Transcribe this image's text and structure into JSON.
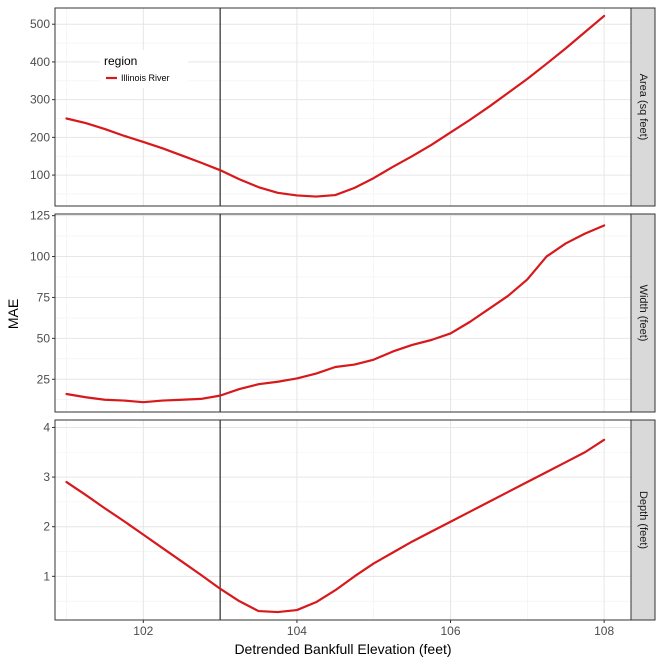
{
  "chart_data": {
    "type": "line",
    "facet_layout": "vertical",
    "ylabel": "MAE",
    "xlabel": "Detrended Bankfull Elevation (feet)",
    "xlim": [
      100.85,
      108.35
    ],
    "x_ticks": [
      102,
      104,
      106,
      108
    ],
    "vline_x": 103,
    "line_color": "#d7191c",
    "grid": true,
    "legend": {
      "title": "region",
      "placement": "top-left inside first panel",
      "entries": [
        {
          "label": "Illinois River",
          "color": "#d7191c"
        }
      ]
    },
    "panels": [
      {
        "strip": "Area (sq feet)",
        "ylim": [
          18,
          543
        ],
        "y_ticks": [
          100,
          200,
          300,
          400,
          500
        ],
        "series": [
          {
            "name": "Illinois River",
            "x": [
              101,
              101.25,
              101.5,
              101.75,
              102,
              102.25,
              102.5,
              102.75,
              103,
              103.25,
              103.5,
              103.75,
              104,
              104.25,
              104.5,
              104.75,
              105,
              105.25,
              105.5,
              105.75,
              106,
              106.25,
              106.5,
              106.75,
              107,
              107.25,
              107.5,
              107.75,
              108
            ],
            "y": [
              250,
              238,
              222,
              204,
              188,
              171,
              152,
              133,
              113,
              89,
              68,
              53,
              46,
              43,
              47,
              66,
              92,
              122,
              150,
              180,
              213,
              246,
              281,
              318,
              355,
              395,
              436,
              479,
              522
            ]
          }
        ]
      },
      {
        "strip": "Width (feet)",
        "ylim": [
          5,
          126
        ],
        "y_ticks": [
          25,
          50,
          75,
          100,
          125
        ],
        "series": [
          {
            "name": "Illinois River",
            "x": [
              101,
              101.25,
              101.5,
              101.75,
              102,
              102.25,
              102.5,
              102.75,
              103,
              103.25,
              103.5,
              103.75,
              104,
              104.25,
              104.5,
              104.75,
              105,
              105.25,
              105.5,
              105.75,
              106,
              106.25,
              106.5,
              106.75,
              107,
              107.25,
              107.5,
              107.75,
              108
            ],
            "y": [
              16,
              14,
              12.5,
              12,
              11,
              12,
              12.5,
              13,
              15,
              19,
              22,
              23.5,
              25.5,
              28.5,
              32.5,
              34,
              37,
              42,
              46,
              49,
              53,
              60,
              68,
              76,
              86,
              100,
              108,
              114,
              119
            ]
          }
        ]
      },
      {
        "strip": "Depth (feet)",
        "ylim": [
          0.12,
          4.15
        ],
        "y_ticks": [
          1,
          2,
          3,
          4
        ],
        "series": [
          {
            "name": "Illinois River",
            "x": [
              101,
              101.25,
              101.5,
              101.75,
              102,
              102.25,
              102.5,
              102.75,
              103,
              103.25,
              103.5,
              103.75,
              104,
              104.25,
              104.5,
              104.75,
              105,
              105.25,
              105.5,
              105.75,
              106,
              106.25,
              106.5,
              106.75,
              107,
              107.25,
              107.5,
              107.75,
              108
            ],
            "y": [
              2.9,
              2.64,
              2.37,
              2.11,
              1.84,
              1.57,
              1.3,
              1.03,
              0.75,
              0.5,
              0.3,
              0.28,
              0.32,
              0.48,
              0.72,
              1.0,
              1.26,
              1.48,
              1.7,
              1.9,
              2.1,
              2.3,
              2.5,
              2.7,
              2.9,
              3.1,
              3.3,
              3.5,
              3.75
            ]
          }
        ]
      }
    ]
  }
}
